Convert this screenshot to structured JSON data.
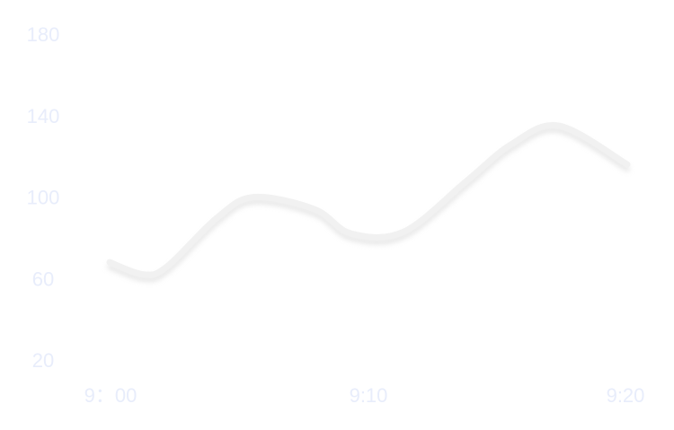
{
  "chart_data": {
    "type": "line",
    "title": "",
    "xlabel": "",
    "ylabel": "",
    "x_tick_labels": [
      "9：00",
      "9:10",
      "9:20"
    ],
    "y_tick_labels": [
      "180",
      "140",
      "100",
      "60",
      "20"
    ],
    "y_ticks": [
      180,
      140,
      100,
      60,
      20
    ],
    "ylim": [
      20,
      180
    ],
    "grid": false,
    "legend": "none",
    "smooth": true,
    "x": [
      0,
      1.3,
      2.2,
      4.1,
      5.5,
      7.8,
      9.2,
      11.2,
      13.6,
      15.3,
      17.1,
      19.7
    ],
    "y": [
      68,
      62,
      66,
      90,
      100,
      94,
      82,
      83,
      108,
      126,
      135,
      116
    ],
    "colors": {
      "line": "#f1f1f1",
      "shadow": "#d2d2d2",
      "tick_text": "#e8edfb",
      "background": "#ffffff"
    }
  }
}
